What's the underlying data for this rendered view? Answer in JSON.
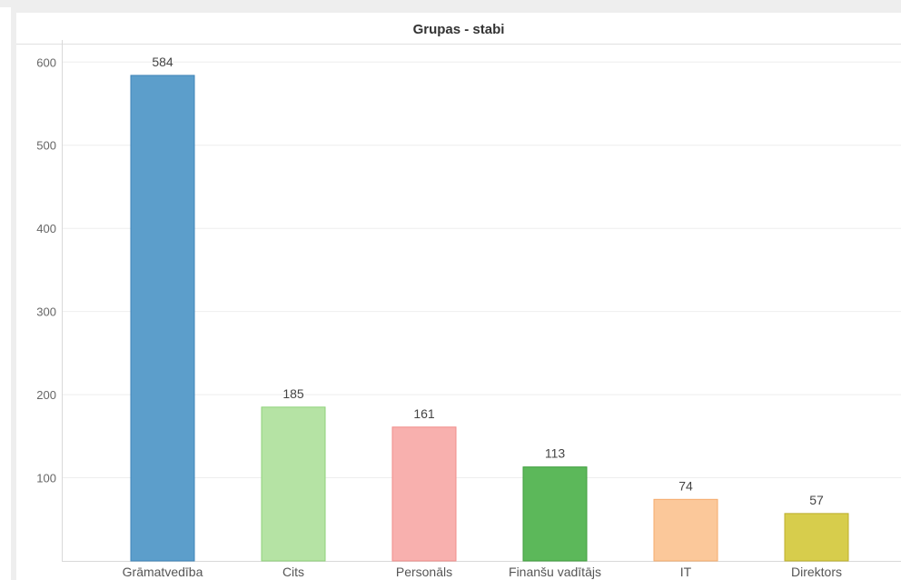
{
  "chart_data": {
    "type": "bar",
    "title": "Grupas - stabi",
    "categories": [
      "Grāmatvedība",
      "Cits",
      "Personāls",
      "Finanšu vadītājs",
      "IT",
      "Direktors"
    ],
    "values": [
      584,
      185,
      161,
      113,
      74,
      57
    ],
    "colors": [
      "#5c9ecb",
      "#b5e3a4",
      "#f8b0ae",
      "#5cb85a",
      "#fbc89a",
      "#d7cd4c"
    ],
    "outline_colors": [
      "#3f84b8",
      "#8fd17a",
      "#f08e8b",
      "#3f9e3d",
      "#f4ab6c",
      "#bcae2c"
    ],
    "y_ticks": [
      100,
      200,
      300,
      400,
      500,
      600
    ],
    "ylim": [
      0,
      620
    ],
    "grid": true,
    "data_labels": true
  }
}
